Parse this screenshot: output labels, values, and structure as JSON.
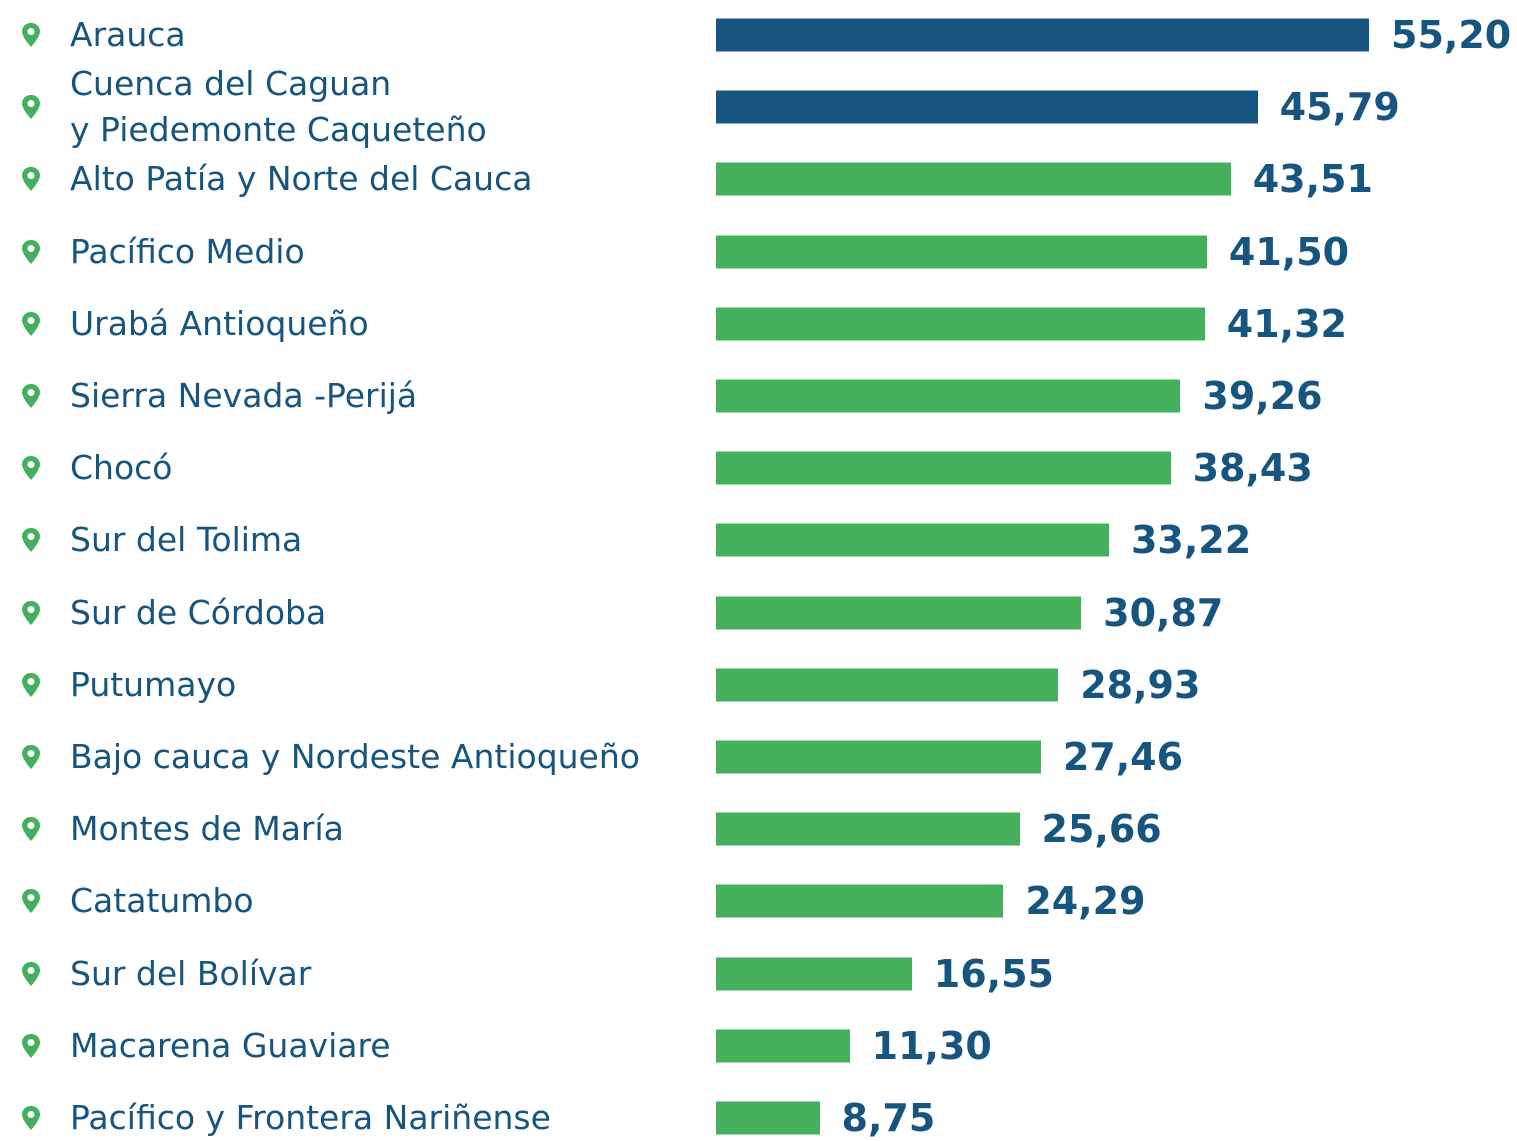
{
  "chart_data": {
    "type": "bar",
    "orientation": "horizontal",
    "categories": [
      "Arauca",
      "Cuenca del Caguan\ny Piedemonte Caqueteño",
      "Alto Patía y Norte del Cauca",
      "Pacífico Medio",
      "Urabá Antioqueño",
      "Sierra Nevada -Perijá",
      "Chocó",
      "Sur del Tolima",
      "Sur de Córdoba",
      "Putumayo",
      "Bajo cauca y Nordeste Antioqueño",
      "Montes de María",
      "Catatumbo",
      "Sur del Bolívar",
      "Macarena Guaviare",
      "Pacífico y Frontera Nariñense"
    ],
    "values": [
      55.2,
      45.79,
      43.51,
      41.5,
      41.32,
      39.26,
      38.43,
      33.22,
      30.87,
      28.93,
      27.46,
      25.66,
      24.29,
      16.55,
      11.3,
      8.75
    ],
    "value_labels": [
      "55,20",
      "45,79",
      "43,51",
      "41,50",
      "41,32",
      "39,26",
      "38,43",
      "33,22",
      "30,87",
      "28,93",
      "27,46",
      "25,66",
      "24,29",
      "16,55",
      "11,30",
      "8,75"
    ],
    "colors": [
      "#15557f",
      "#15557f",
      "#45b05c",
      "#45b05c",
      "#45b05c",
      "#45b05c",
      "#45b05c",
      "#45b05c",
      "#45b05c",
      "#45b05c",
      "#45b05c",
      "#45b05c",
      "#45b05c",
      "#45b05c",
      "#45b05c",
      "#45b05c"
    ],
    "label_color": "#15557f",
    "marker_color": "#45b05c"
  }
}
